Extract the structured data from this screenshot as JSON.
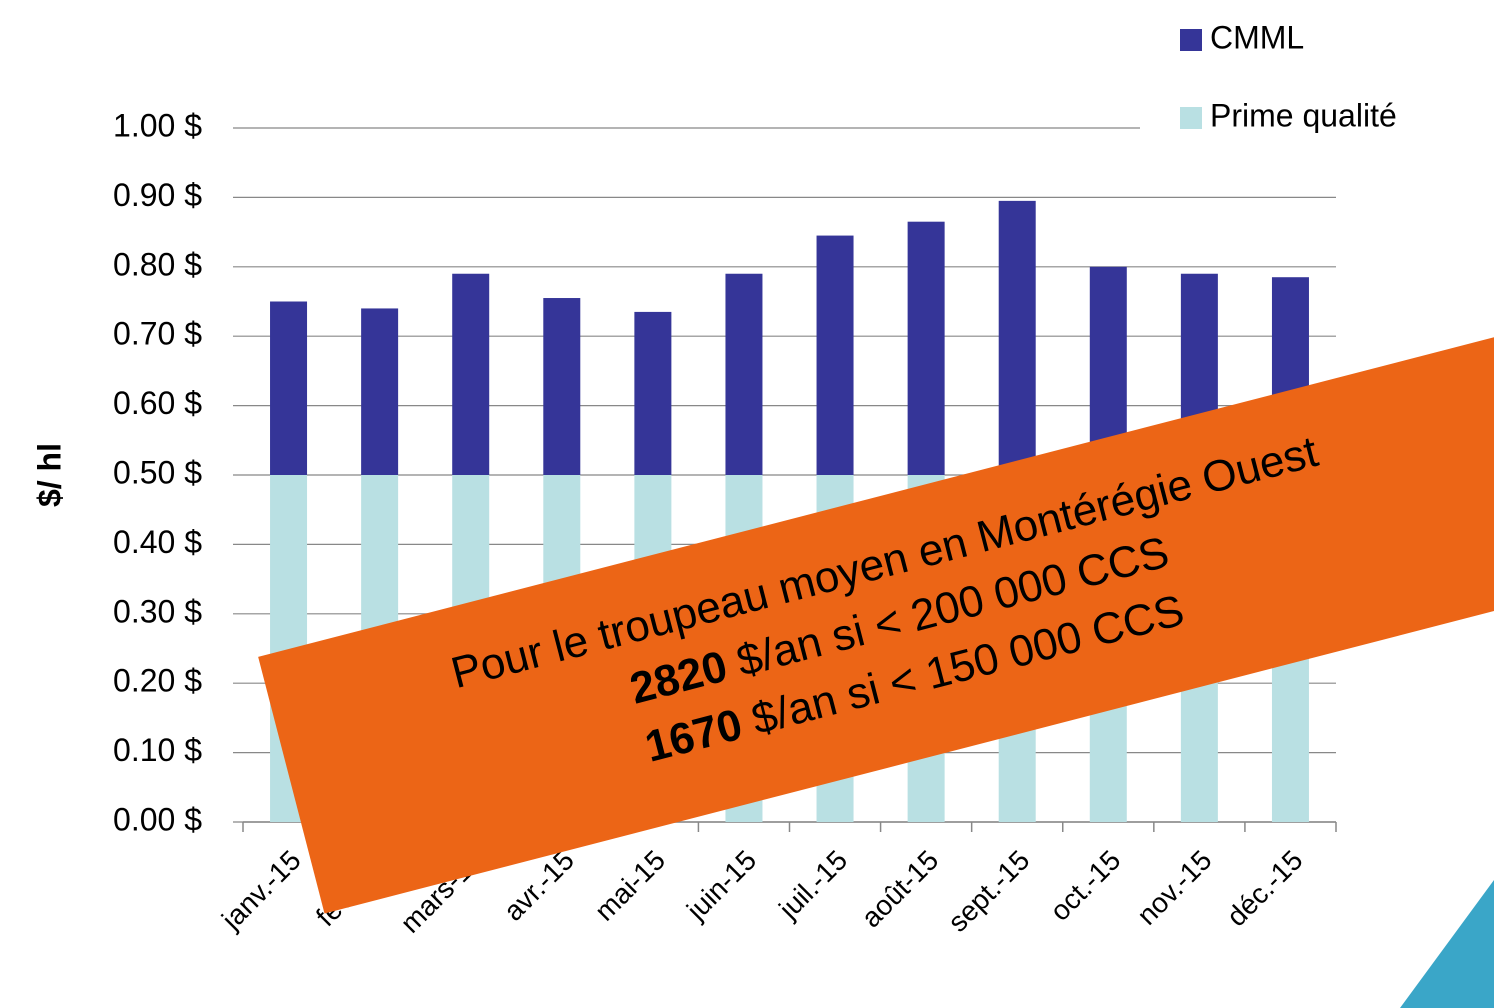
{
  "chart_data": {
    "type": "stacked_bar",
    "categories": [
      "janv.-15",
      "févr.-15",
      "mars-15",
      "avr.-15",
      "mai-15",
      "juin-15",
      "juil.-15",
      "août-15",
      "sept.-15",
      "oct.-15",
      "nov.-15",
      "déc.-15"
    ],
    "series": [
      {
        "name": "Prime qualité",
        "color": "#b9e0e3",
        "values": [
          0.5,
          0.5,
          0.5,
          0.5,
          0.5,
          0.5,
          0.5,
          0.5,
          0.5,
          0.5,
          0.5,
          0.5
        ]
      },
      {
        "name": "CMML",
        "color": "#353598",
        "values": [
          0.25,
          0.24,
          0.29,
          0.255,
          0.235,
          0.29,
          0.345,
          0.365,
          0.395,
          0.3,
          0.29,
          0.285
        ]
      }
    ],
    "y_label": "$/ hl",
    "ylim": [
      0,
      1
    ],
    "yticks": [
      {
        "value": 0,
        "label": "0.00 $"
      },
      {
        "value": 0.1,
        "label": "0.10 $"
      },
      {
        "value": 0.2,
        "label": "0.20 $"
      },
      {
        "value": 0.3,
        "label": "0.30 $"
      },
      {
        "value": 0.4,
        "label": "0.40 $"
      },
      {
        "value": 0.5,
        "label": "0.50 $"
      },
      {
        "value": 0.6,
        "label": "0.60 $"
      },
      {
        "value": 0.7,
        "label": "0.70 $"
      },
      {
        "value": 0.8,
        "label": "0.80 $"
      },
      {
        "value": 0.9,
        "label": "0.90 $"
      },
      {
        "value": 1,
        "label": "1.00 $"
      }
    ],
    "grid": true,
    "legend": "top-right",
    "annotation": {
      "line1": "Pour le troupeau moyen en Montérégie Ouest",
      "line2_bold": "2820",
      "line2": " $/an si < 200 000 CCS",
      "line3_bold": "1670",
      "line3": " $/an si < 150 000 CCS"
    }
  }
}
